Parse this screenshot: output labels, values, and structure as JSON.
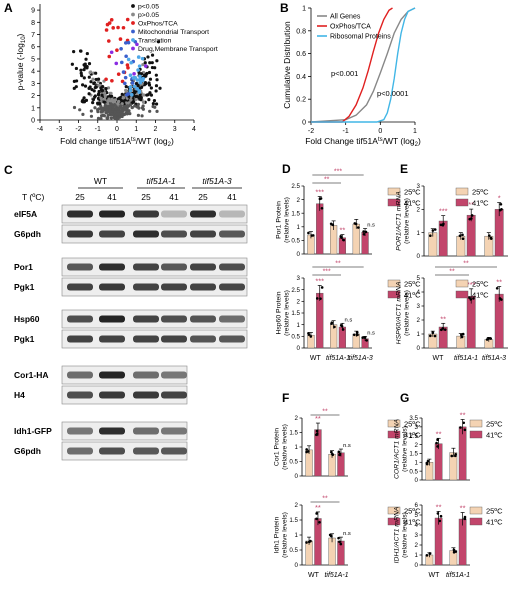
{
  "colors": {
    "light": "#f4d3b3",
    "dark": "#c2456b",
    "all": "#888888",
    "oxphos": "#e02020",
    "ribo": "#41b6e6",
    "dot": "#111111",
    "grey": "#8a8a8a",
    "drug": "#8a2be2",
    "mito": "#3a5fcd",
    "transl": "#4fa8e8"
  },
  "panelA": {
    "letter": "A",
    "ylabel_main": "p-value (-log",
    "ylabel_sub": "10",
    "ylabel_end": ")",
    "xlabel_main": "Fold change tif51A",
    "xlabel_sup": "ts",
    "xlabel_mid": "/WT (log",
    "xlabel_sub": "2",
    "xlabel_end": ")",
    "yticks": [
      "0",
      "1",
      "2",
      "3",
      "4",
      "5",
      "6",
      "7",
      "8",
      "9"
    ],
    "xticks": [
      "-4",
      "-3",
      "-2",
      "-1",
      "0",
      "1",
      "2",
      "3",
      "4"
    ],
    "legend": [
      "p<0.05",
      "p>0.05",
      "OxPhos/TCA",
      "Mitochondrial Transport",
      "Translation",
      "Drug,Membrane Transport"
    ]
  },
  "panelB": {
    "letter": "B",
    "ylabel": "Cumulative Distribution",
    "xlabel_main": "Fold Change tif51A",
    "xlabel_sup": "ts",
    "xlabel_mid": "/WT (log",
    "xlabel_sub": "2",
    "xlabel_end": ")",
    "yticks": [
      "0",
      "0.2",
      "0.4",
      "0.6",
      "0.8",
      "1"
    ],
    "xticks": [
      "-2",
      "-1",
      "0",
      "1"
    ],
    "legend": [
      "All Genes",
      "OxPhos/TCA",
      "Ribosomal Proteins"
    ],
    "annot1": "p<0.001",
    "annot2": "p<0.0001"
  },
  "panelC": {
    "letter": "C",
    "t_label": "T (ºC)",
    "strains": [
      "WT",
      "tif51A-1",
      "tif51A-3"
    ],
    "temps": [
      "25",
      "41",
      "25",
      "41",
      "25",
      "41"
    ],
    "blots": [
      "eIF5A",
      "G6pdh",
      "Por1",
      "Pgk1",
      "Hsp60",
      "Pgk1",
      "Cor1-HA",
      "H4",
      "Idh1-GFP",
      "G6pdh"
    ]
  },
  "legend_temps": [
    "25ºC",
    "41ºC"
  ],
  "panelD": {
    "letter": "D",
    "top_ylabel": [
      "Por1 Protein",
      "(relative levels)"
    ],
    "bot_ylabel": [
      "Hsp60 Protein",
      "(relative levels)"
    ],
    "xlabels": [
      "WT",
      "tif51A-1",
      "tif51A-3"
    ],
    "top_ticks": [
      "0",
      "0.5",
      "1",
      "1.5",
      "2",
      "2.5"
    ],
    "bot_ticks": [
      "0",
      "0.5",
      "1",
      "1.5",
      "2",
      "2.5",
      "3"
    ],
    "top_sig": [
      "***",
      "**",
      "n.s",
      "**",
      "***"
    ],
    "bot_sig": [
      "***",
      "n.s",
      "n.s",
      "***",
      "**"
    ]
  },
  "panelE": {
    "letter": "E",
    "top_ylabel": [
      "POR1/ACT1 mRNA",
      "(relative levels)"
    ],
    "bot_ylabel": [
      "HSP60/ACT1 mRNA",
      "(relative levels)"
    ],
    "xlabels": [
      "WT",
      "tif51A-1",
      "tif51A-3"
    ],
    "top_ticks": [
      "0",
      "1",
      "2",
      "3"
    ],
    "bot_ticks": [
      "0",
      "1",
      "2",
      "3",
      "4",
      "5"
    ],
    "top_sig": [
      "***",
      "**",
      "*"
    ],
    "bot_sig": [
      "**",
      "***",
      "**",
      "**",
      "**"
    ]
  },
  "panelF": {
    "letter": "F",
    "top_ylabel": [
      "Cor1 Protein",
      "(relative levels)"
    ],
    "bot_ylabel": [
      "Idh1 Protein",
      "(relative levels)"
    ],
    "xlabels": [
      "WT",
      "tif51A-1"
    ],
    "top_ticks": [
      "0",
      "0.5",
      "1",
      "1.5",
      "2"
    ],
    "bot_ticks": [
      "0",
      "0.5",
      "1",
      "1.5",
      "2"
    ],
    "top_sig": [
      "**",
      "n.s",
      "**"
    ],
    "bot_sig": [
      "**",
      "n.s",
      "**"
    ]
  },
  "panelG": {
    "letter": "G",
    "top_ylabel": [
      "COR1/ACT1 mRNA",
      "(relative levels)"
    ],
    "bot_ylabel": [
      "IDH1/ACT1 mRNA",
      "(relative levels)"
    ],
    "xlabels": [
      "WT",
      "tif51A-1"
    ],
    "top_ticks": [
      "0",
      "0.5",
      "1",
      "1.5",
      "2",
      "2.5",
      "3",
      "3.5"
    ],
    "bot_ticks": [
      "0",
      "1",
      "2",
      "3",
      "4",
      "5",
      "6"
    ],
    "top_sig": [
      "**",
      "**"
    ],
    "bot_sig": [
      "**",
      "**"
    ]
  },
  "chart_data": [
    {
      "type": "scatter",
      "panel": "A",
      "xlabel": "Fold change tif51Ats/WT (log2)",
      "ylabel": "p-value (-log10)",
      "xlim": [
        -4,
        4
      ],
      "ylim": [
        0,
        9.5
      ],
      "series": [
        {
          "name": "p<0.05"
        },
        {
          "name": "p>0.05"
        },
        {
          "name": "OxPhos/TCA"
        },
        {
          "name": "Mitochondrial Transport"
        },
        {
          "name": "Translation"
        },
        {
          "name": "Drug,Membrane Transport"
        }
      ]
    },
    {
      "type": "line",
      "panel": "B",
      "xlabel": "Fold Change tif51Ats/WT (log2)",
      "ylabel": "Cumulative Distribution",
      "xlim": [
        -2,
        1
      ],
      "ylim": [
        0,
        1
      ],
      "series": [
        {
          "name": "All Genes",
          "x": [
            -2,
            -1,
            -0.7,
            -0.4,
            -0.2,
            0,
            0.2,
            0.4,
            0.6,
            0.8,
            1
          ],
          "y": [
            0,
            0.02,
            0.06,
            0.15,
            0.27,
            0.43,
            0.6,
            0.78,
            0.9,
            0.97,
            1
          ]
        },
        {
          "name": "OxPhos/TCA",
          "x": [
            -2,
            -1.1,
            -0.9,
            -0.7,
            -0.5,
            -0.35,
            -0.2,
            -0.05,
            0.1,
            0.25,
            0.35
          ],
          "y": [
            0,
            0,
            0.05,
            0.15,
            0.3,
            0.45,
            0.62,
            0.78,
            0.9,
            0.98,
            1
          ]
        },
        {
          "name": "Ribosomal Proteins",
          "x": [
            -2,
            -0.1,
            0.1,
            0.2,
            0.3,
            0.4,
            0.5,
            0.6,
            0.7,
            0.8,
            1
          ],
          "y": [
            0,
            0,
            0.02,
            0.08,
            0.2,
            0.38,
            0.6,
            0.78,
            0.9,
            0.97,
            1
          ]
        }
      ]
    },
    {
      "type": "bar",
      "panel": "D-top",
      "categories": [
        "WT",
        "tif51A-1",
        "tif51A-3"
      ],
      "ylim": [
        0,
        2.5
      ],
      "series": [
        {
          "name": "25ºC",
          "values": [
            0.7,
            1.05,
            1.1
          ]
        },
        {
          "name": "41ºC",
          "values": [
            1.85,
            0.6,
            0.8
          ]
        }
      ]
    },
    {
      "type": "bar",
      "panel": "D-bottom",
      "categories": [
        "WT",
        "tif51A-1",
        "tif51A-3"
      ],
      "ylim": [
        0,
        3
      ],
      "series": [
        {
          "name": "25ºC",
          "values": [
            0.55,
            1.0,
            0.6
          ]
        },
        {
          "name": "41ºC",
          "values": [
            2.35,
            0.9,
            0.4
          ]
        }
      ]
    },
    {
      "type": "bar",
      "panel": "E-top",
      "categories": [
        "WT",
        "tif51A-1",
        "tif51A-3"
      ],
      "ylim": [
        0,
        3
      ],
      "series": [
        {
          "name": "25ºC",
          "values": [
            1.0,
            0.85,
            0.85
          ]
        },
        {
          "name": "41ºC",
          "values": [
            1.5,
            1.75,
            2.0
          ]
        }
      ]
    },
    {
      "type": "bar",
      "panel": "E-bottom",
      "categories": [
        "WT",
        "tif51A-1",
        "tif51A-3"
      ],
      "ylim": [
        0,
        5
      ],
      "series": [
        {
          "name": "25ºC",
          "values": [
            1.0,
            0.85,
            0.6
          ]
        },
        {
          "name": "41ºC",
          "values": [
            1.5,
            3.7,
            3.85
          ]
        }
      ]
    },
    {
      "type": "bar",
      "panel": "F-top",
      "categories": [
        "WT",
        "tif51A-1"
      ],
      "ylim": [
        0,
        2
      ],
      "series": [
        {
          "name": "25ºC",
          "values": [
            0.9,
            0.75
          ]
        },
        {
          "name": "41ºC",
          "values": [
            1.6,
            0.8
          ]
        }
      ]
    },
    {
      "type": "bar",
      "panel": "F-bottom",
      "categories": [
        "WT",
        "tif51A-1"
      ],
      "ylim": [
        0,
        2
      ],
      "series": [
        {
          "name": "25ºC",
          "values": [
            0.8,
            0.9
          ]
        },
        {
          "name": "41ºC",
          "values": [
            1.55,
            0.8
          ]
        }
      ]
    },
    {
      "type": "bar",
      "panel": "G-top",
      "categories": [
        "WT",
        "tif51A-1"
      ],
      "ylim": [
        0,
        3.5
      ],
      "series": [
        {
          "name": "25ºC",
          "values": [
            1.0,
            1.55
          ]
        },
        {
          "name": "41ºC",
          "values": [
            2.05,
            3.0
          ]
        }
      ]
    },
    {
      "type": "bar",
      "panel": "G-bottom",
      "categories": [
        "WT",
        "tif51A-1"
      ],
      "ylim": [
        0,
        6
      ],
      "series": [
        {
          "name": "25ºC",
          "values": [
            1.0,
            1.45
          ]
        },
        {
          "name": "41ºC",
          "values": [
            4.7,
            4.6
          ]
        }
      ]
    }
  ]
}
